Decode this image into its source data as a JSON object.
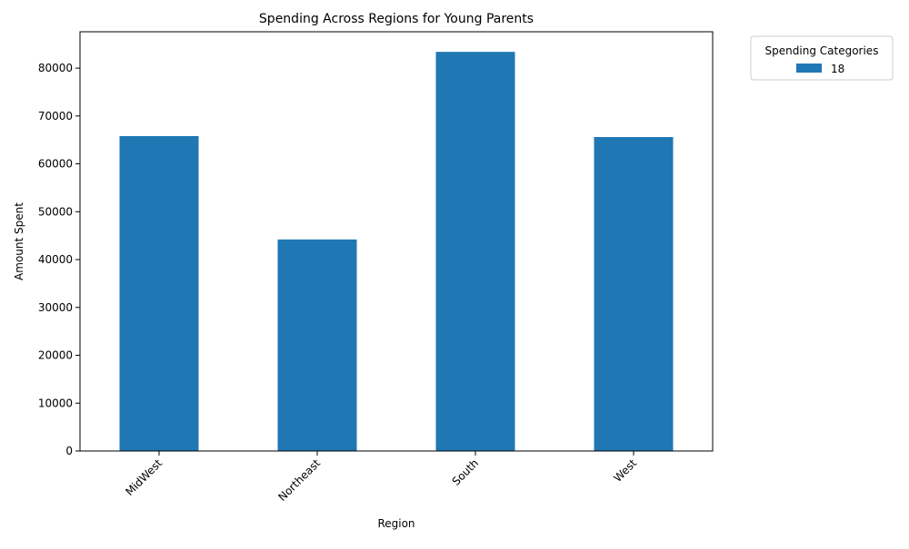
{
  "chart_data": {
    "type": "bar",
    "title": "Spending Across Regions for Young Parents",
    "xlabel": "Region",
    "ylabel": "Amount Spent",
    "categories": [
      "MidWest",
      "Northeast",
      "South",
      "West"
    ],
    "series": [
      {
        "name": "18",
        "values": [
          65800,
          44200,
          83400,
          65600
        ],
        "color": "#1f77b4"
      }
    ],
    "ylim": [
      0,
      87600
    ],
    "yticks": [
      0,
      10000,
      20000,
      30000,
      40000,
      50000,
      60000,
      70000,
      80000
    ],
    "grid": false,
    "legend": {
      "title": "Spending Categories",
      "placement": "outside-top-right"
    }
  }
}
